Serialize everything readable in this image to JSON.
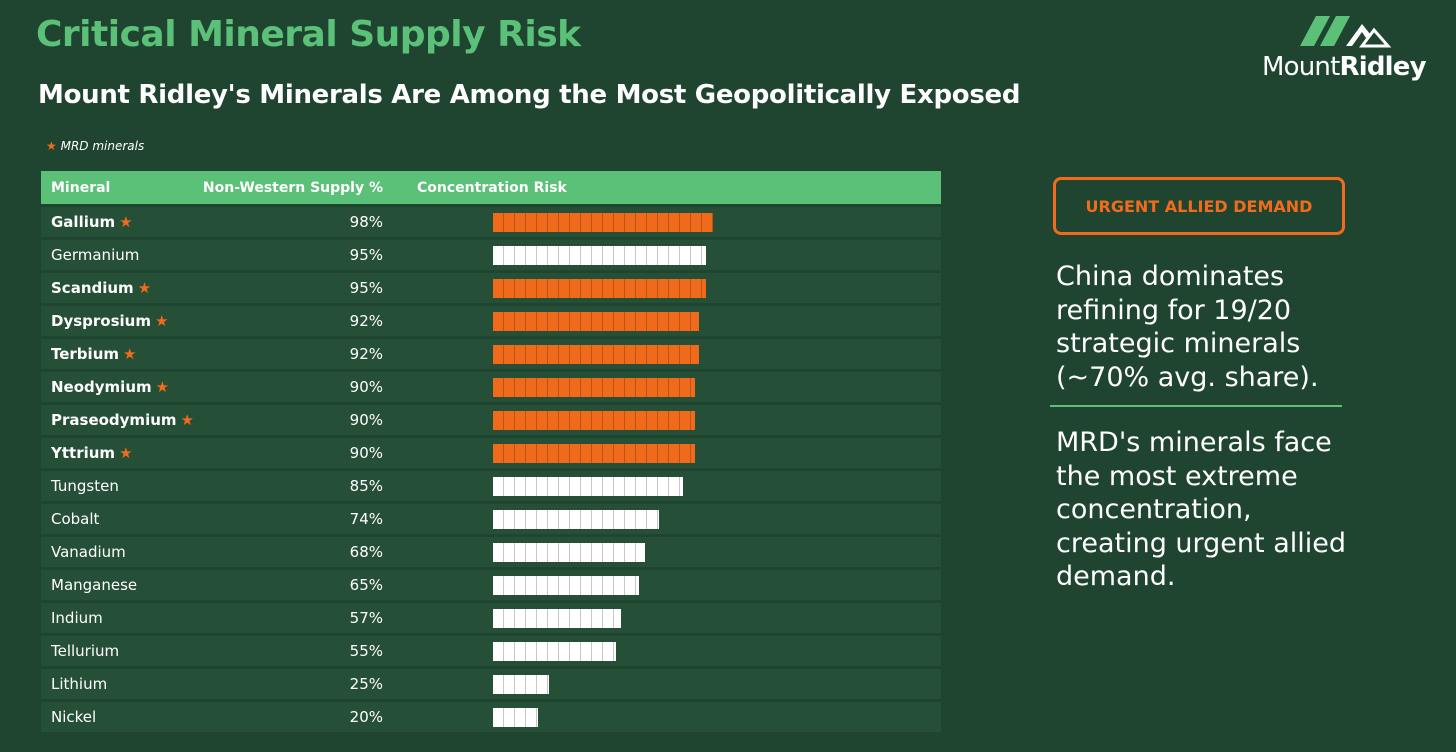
{
  "header": {
    "title": "Critical Mineral Supply Risk",
    "subtitle": "Mount Ridley's Minerals Are Among the Most Geopolitically Exposed"
  },
  "logo": {
    "text_light": "Mount",
    "text_bold": "Ridley"
  },
  "legend": {
    "star": "★",
    "label": "MRD minerals"
  },
  "chart_data": {
    "type": "table",
    "columns": [
      "Mineral",
      "Non-Western Supply %",
      "Concentration Risk"
    ],
    "rows": [
      {
        "mineral": "Gallium",
        "pct": "98%",
        "value": 98,
        "mrd": true
      },
      {
        "mineral": "Germanium",
        "pct": "95%",
        "value": 95,
        "mrd": false
      },
      {
        "mineral": "Scandium",
        "pct": "95%",
        "value": 95,
        "mrd": true
      },
      {
        "mineral": "Dysprosium",
        "pct": "92%",
        "value": 92,
        "mrd": true
      },
      {
        "mineral": "Terbium",
        "pct": "92%",
        "value": 92,
        "mrd": true
      },
      {
        "mineral": "Neodymium",
        "pct": "90%",
        "value": 90,
        "mrd": true
      },
      {
        "mineral": "Praseodymium",
        "pct": "90%",
        "value": 90,
        "mrd": true
      },
      {
        "mineral": "Yttrium",
        "pct": "90%",
        "value": 90,
        "mrd": true
      },
      {
        "mineral": "Tungsten",
        "pct": "85%",
        "value": 85,
        "mrd": false
      },
      {
        "mineral": "Cobalt",
        "pct": "74%",
        "value": 74,
        "mrd": false
      },
      {
        "mineral": "Vanadium",
        "pct": "68%",
        "value": 68,
        "mrd": false
      },
      {
        "mineral": "Manganese",
        "pct": "65%",
        "value": 65,
        "mrd": false
      },
      {
        "mineral": "Indium",
        "pct": "57%",
        "value": 57,
        "mrd": false
      },
      {
        "mineral": "Tellurium",
        "pct": "55%",
        "value": 55,
        "mrd": false
      },
      {
        "mineral": "Lithium",
        "pct": "25%",
        "value": 25,
        "mrd": false
      },
      {
        "mineral": "Nickel",
        "pct": "20%",
        "value": 20,
        "mrd": false
      }
    ],
    "colors": {
      "mrd_bar": "#f06a1b",
      "other_bar": "#ffffff",
      "header": "#5cc178"
    }
  },
  "panel": {
    "badge": "URGENT ALLIED DEMAND",
    "text1": "China dominates refining for 19/20 strategic minerals (~70% avg. share).",
    "text2": "MRD's minerals face the most extreme concentration, creating urgent allied demand."
  }
}
